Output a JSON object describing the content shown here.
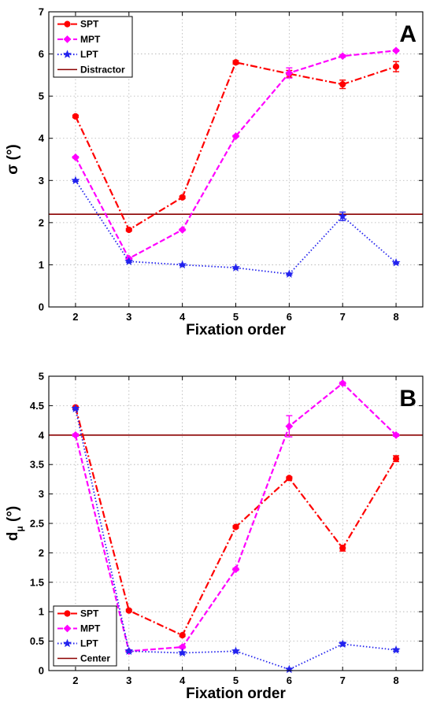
{
  "chart_data": [
    {
      "type": "line",
      "panel_label": "A",
      "x": [
        2,
        3,
        4,
        5,
        6,
        7,
        8
      ],
      "xlabel": "Fixation order",
      "ylabel": "σ (°)",
      "xlim": [
        1.5,
        8.5
      ],
      "ylim": [
        0,
        7
      ],
      "xticks": [
        "2",
        "3",
        "4",
        "5",
        "6",
        "7",
        "8"
      ],
      "yticks": [
        "0",
        "1",
        "2",
        "3",
        "4",
        "5",
        "6",
        "7"
      ],
      "grid": true,
      "legend": "top-left",
      "series": [
        {
          "name": "SPT",
          "color": "#ff0000",
          "style": "dashdot",
          "marker": "circle",
          "values": [
            4.52,
            1.83,
            2.6,
            5.8,
            5.53,
            5.28,
            5.7
          ],
          "errors": [
            0.03,
            0.03,
            0.03,
            0.04,
            0.08,
            0.1,
            0.12
          ]
        },
        {
          "name": "MPT",
          "color": "#ff00ff",
          "style": "dashed",
          "marker": "diamond",
          "values": [
            3.55,
            1.15,
            1.83,
            4.05,
            5.55,
            5.95,
            6.08
          ],
          "errors": [
            0.02,
            0.02,
            0.02,
            0.02,
            0.12,
            0.03,
            0.02
          ]
        },
        {
          "name": "LPT",
          "color": "#2222ee",
          "style": "dotted",
          "marker": "star",
          "values": [
            3.0,
            1.08,
            1.0,
            0.93,
            0.78,
            2.15,
            1.05
          ],
          "errors": [
            0.02,
            0.02,
            0.02,
            0.02,
            0.02,
            0.1,
            0.02
          ]
        }
      ],
      "reference_line": {
        "name": "Distractor",
        "value": 2.2,
        "color": "#8b0000"
      }
    },
    {
      "type": "line",
      "panel_label": "B",
      "x": [
        2,
        3,
        4,
        5,
        6,
        7,
        8
      ],
      "xlabel": "Fixation order",
      "ylabel": "d",
      "ylabel_sub": "μ",
      "ylabel_unit": "(°)",
      "xlim": [
        1.5,
        8.5
      ],
      "ylim": [
        0,
        5
      ],
      "xticks": [
        "2",
        "3",
        "4",
        "5",
        "6",
        "7",
        "8"
      ],
      "yticks": [
        "0",
        "0.5",
        "1",
        "1.5",
        "2",
        "2.5",
        "3",
        "3.5",
        "4",
        "4.5",
        "5"
      ],
      "grid": true,
      "legend": "bottom-left",
      "series": [
        {
          "name": "SPT",
          "color": "#ff0000",
          "style": "dashdot",
          "marker": "circle",
          "values": [
            4.47,
            1.02,
            0.6,
            2.44,
            3.27,
            2.08,
            3.6
          ],
          "errors": [
            0.02,
            0.02,
            0.02,
            0.02,
            0.02,
            0.05,
            0.05
          ]
        },
        {
          "name": "MPT",
          "color": "#ff00ff",
          "style": "dashed",
          "marker": "diamond",
          "values": [
            4.0,
            0.33,
            0.4,
            1.72,
            4.15,
            4.88,
            4.0
          ],
          "errors": [
            0.02,
            0.02,
            0.02,
            0.02,
            0.18,
            0.02,
            0.02
          ]
        },
        {
          "name": "LPT",
          "color": "#2222ee",
          "style": "dotted",
          "marker": "star",
          "values": [
            4.45,
            0.33,
            0.3,
            0.33,
            0.02,
            0.45,
            0.35
          ],
          "errors": [
            0.02,
            0.02,
            0.02,
            0.02,
            0.02,
            0.03,
            0.02
          ]
        }
      ],
      "reference_line": {
        "name": "Center",
        "value": 4.0,
        "color": "#8b0000"
      }
    }
  ]
}
